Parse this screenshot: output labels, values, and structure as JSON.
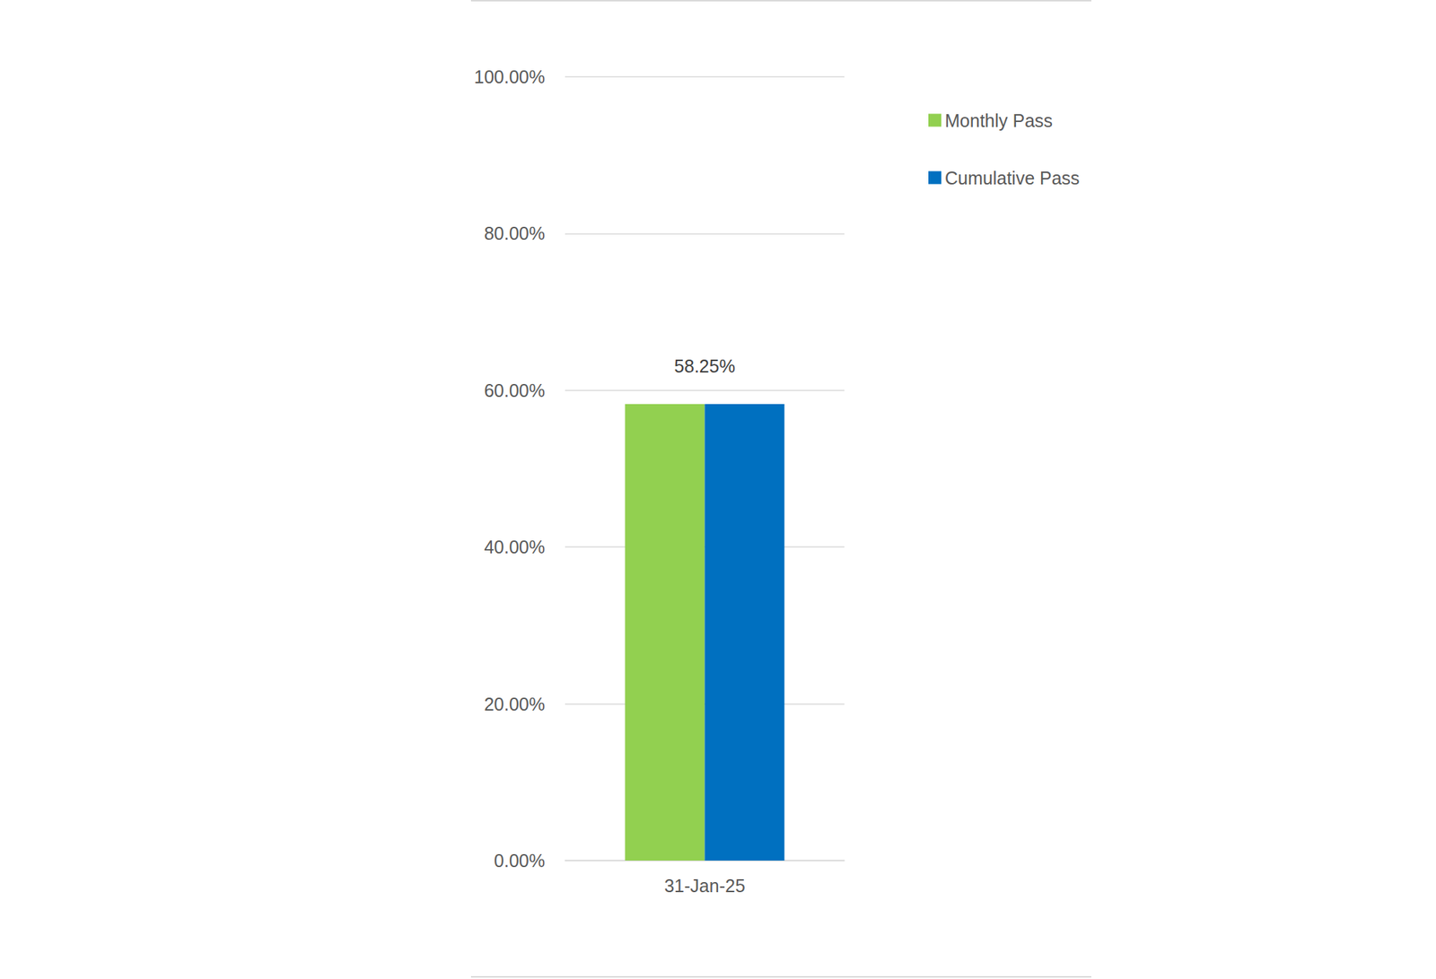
{
  "chart_data": {
    "type": "bar",
    "categories": [
      "31-Jan-25"
    ],
    "series": [
      {
        "name": "Monthly Pass",
        "color": "#92d050",
        "values": [
          58.25
        ],
        "value_labels": [
          "58.25%"
        ]
      },
      {
        "name": "Cumulative Pass",
        "color": "#0070c0",
        "values": [
          58.25
        ],
        "value_labels": [
          "58.25%"
        ]
      }
    ],
    "ylim": [
      0,
      100
    ],
    "yticks": [
      {
        "value": 0,
        "label": "0.00%"
      },
      {
        "value": 20,
        "label": "20.00%"
      },
      {
        "value": 40,
        "label": "40.00%"
      },
      {
        "value": 60,
        "label": "60.00%"
      },
      {
        "value": 80,
        "label": "80.00%"
      },
      {
        "value": 100,
        "label": "100.00%"
      }
    ],
    "grid": true,
    "legend": "right",
    "data_labels": true
  }
}
